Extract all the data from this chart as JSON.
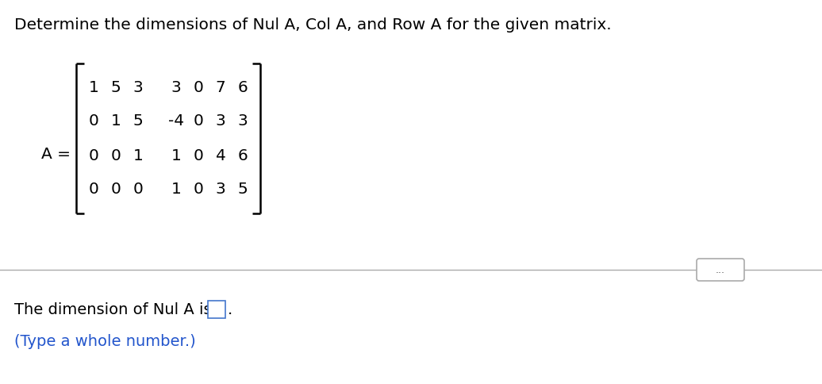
{
  "title": "Determine the dimensions of Nul A, Col A, and Row A for the given matrix.",
  "title_color": "#000000",
  "title_fontsize": 14.5,
  "matrix_label": "A =",
  "matrix_rows": [
    [
      "1",
      "5",
      "3",
      "3",
      "0",
      "7",
      "6"
    ],
    [
      "0",
      "1",
      "5",
      "-4",
      "0",
      "3",
      "3"
    ],
    [
      "0",
      "0",
      "1",
      "1",
      "0",
      "4",
      "6"
    ],
    [
      "0",
      "0",
      "0",
      "1",
      "0",
      "3",
      "5"
    ]
  ],
  "bottom_text_black": "The dimension of Nul A is",
  "bottom_text_blue": "(Type a whole number.)",
  "bottom_text_color": "#000000",
  "bottom_hint_color": "#2255cc",
  "separator_color": "#aaaaaa",
  "dots_ellipsis": "...",
  "bg_color": "#ffffff",
  "matrix_fontsize": 14.5,
  "matrix_label_fontsize": 14.5
}
